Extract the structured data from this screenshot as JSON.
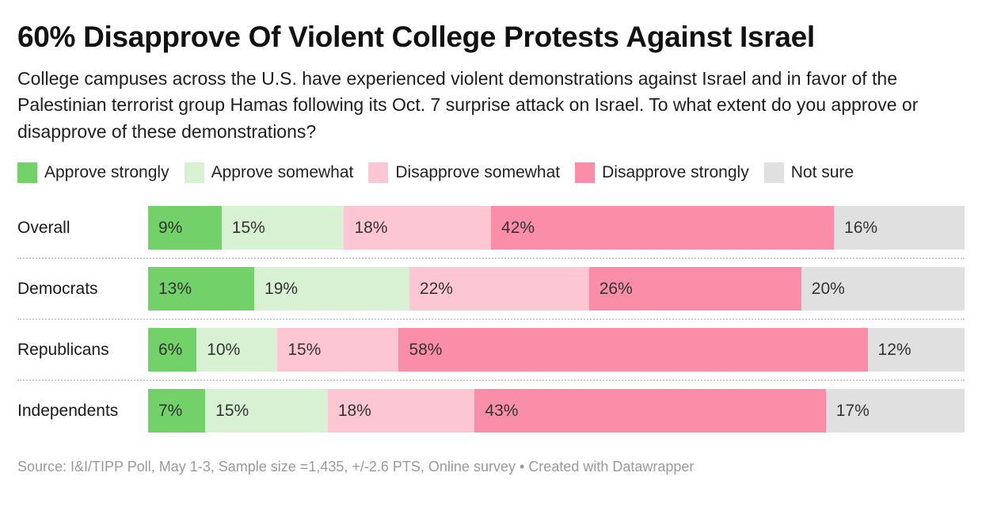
{
  "header": {
    "title": "60% Disapprove Of Violent College Protests Against Israel",
    "description": "College campuses across the U.S. have experienced violent demonstrations against Israel and in favor of the Palestinian terrorist group Hamas following its Oct. 7 surprise attack on Israel. To what extent do you approve or disapprove of these demonstrations?"
  },
  "chart_data": {
    "type": "bar",
    "stacked": true,
    "orientation": "horizontal",
    "value_format": "percent",
    "legend_position": "top",
    "grid": false,
    "categories": [
      "Overall",
      "Democrats",
      "Republicans",
      "Independents"
    ],
    "series": [
      {
        "name": "Approve strongly",
        "color": "#72d168",
        "values": [
          9,
          13,
          6,
          7
        ]
      },
      {
        "name": "Approve somewhat",
        "color": "#d9f1d3",
        "values": [
          15,
          19,
          10,
          15
        ]
      },
      {
        "name": "Disapprove somewhat",
        "color": "#fcc7d3",
        "values": [
          18,
          22,
          15,
          18
        ]
      },
      {
        "name": "Disapprove strongly",
        "color": "#fa8ea8",
        "values": [
          42,
          26,
          58,
          43
        ]
      },
      {
        "name": "Not sure",
        "color": "#e0e0e0",
        "values": [
          16,
          20,
          12,
          17
        ]
      }
    ],
    "colors": {
      "value_label_text": "#333333",
      "separator": "#cccccc"
    }
  },
  "footer": {
    "source": "Source: I&I/TIPP Poll, May 1-3, Sample size =1,435, +/-2.6 PTS, Online survey",
    "separator": "•",
    "attribution": "Created with Datawrapper"
  }
}
